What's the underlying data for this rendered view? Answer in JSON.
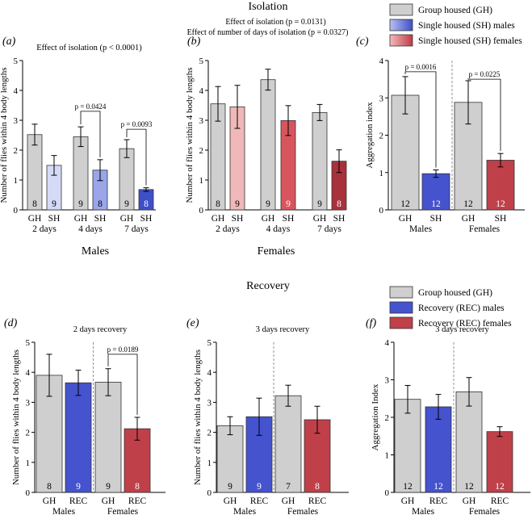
{
  "figure": {
    "isolation_title": "Isolation",
    "recovery_title": "Recovery",
    "males_label": "Males",
    "females_label": "Females"
  },
  "legends": {
    "isolation": [
      {
        "label": "Group housed (GH)",
        "color": "#cfcfcf",
        "color2": "#cfcfcf"
      },
      {
        "label": "Single housed (SH) males",
        "color": "#b7c0ee",
        "color2": "#3f4fc8"
      },
      {
        "label": "Single housed (SH) females",
        "color": "#f2bcbc",
        "color2": "#c23a45"
      }
    ],
    "recovery": [
      {
        "label": "Group housed (GH)",
        "color": "#cfcfcf",
        "color2": "#cfcfcf"
      },
      {
        "label": "Recovery (REC) males",
        "color": "#4553cf",
        "color2": "#4553cf"
      },
      {
        "label": "Recovery (REC) females",
        "color": "#c0404a",
        "color2": "#c0404a"
      }
    ]
  },
  "chart_data": [
    {
      "id": "a",
      "panel": "(a)",
      "type": "bar",
      "title": "Effect of isolation (p < 0.0001)",
      "ylabel": "Number of flies within 4 body lengths",
      "ylim": [
        0,
        5
      ],
      "yticks": [
        0,
        1,
        2,
        3,
        4,
        5
      ],
      "group_labels": [
        "2 days",
        "4 days",
        "7 days"
      ],
      "bars": [
        {
          "label": "GH",
          "value": 2.52,
          "err": 0.35,
          "n": "8",
          "color": "#cfcfcf",
          "group": 0
        },
        {
          "label": "SH",
          "value": 1.49,
          "err": 0.33,
          "n": "9",
          "color": "#d5dbf7",
          "group": 0
        },
        {
          "label": "GH",
          "value": 2.45,
          "err": 0.33,
          "n": "9",
          "color": "#cfcfcf",
          "group": 1
        },
        {
          "label": "SH",
          "value": 1.33,
          "err": 0.35,
          "n": "8",
          "color": "#9aa5ea",
          "group": 1
        },
        {
          "label": "GH",
          "value": 2.05,
          "err": 0.3,
          "n": "9",
          "color": "#cfcfcf",
          "group": 2
        },
        {
          "label": "SH",
          "value": 0.68,
          "err": 0.06,
          "n": "8",
          "color": "#3f4fc8",
          "group": 2
        }
      ],
      "sig": [
        {
          "from": 2,
          "to": 3,
          "label": "p = 0.0424",
          "y": 3.3
        },
        {
          "from": 4,
          "to": 5,
          "label": "p = 0.0093",
          "y": 2.7
        }
      ],
      "separators": []
    },
    {
      "id": "b",
      "panel": "(b)",
      "type": "bar",
      "title": "Effect of isolation (p = 0.0131)",
      "subtitle": "Effect of number of days of isolation (p = 0.0327)",
      "ylabel": "Number of flies within 4 body lengths",
      "ylim": [
        0,
        5
      ],
      "yticks": [
        0,
        1,
        2,
        3,
        4,
        5
      ],
      "group_labels": [
        "2 days",
        "4 days",
        "7 days"
      ],
      "bars": [
        {
          "label": "GH",
          "value": 3.55,
          "err": 0.58,
          "n": "8",
          "color": "#cfcfcf",
          "group": 0
        },
        {
          "label": "SH",
          "value": 3.45,
          "err": 0.72,
          "n": "9",
          "color": "#f0b8b8",
          "group": 0
        },
        {
          "label": "GH",
          "value": 4.36,
          "err": 0.35,
          "n": "9",
          "color": "#cfcfcf",
          "group": 1
        },
        {
          "label": "SH",
          "value": 2.99,
          "err": 0.5,
          "n": "9",
          "color": "#d9555d",
          "group": 1
        },
        {
          "label": "GH",
          "value": 3.26,
          "err": 0.27,
          "n": "9",
          "color": "#cfcfcf",
          "group": 2
        },
        {
          "label": "SH",
          "value": 1.63,
          "err": 0.38,
          "n": "8",
          "color": "#a8323c",
          "group": 2
        }
      ],
      "sig": [],
      "separators": []
    },
    {
      "id": "c",
      "panel": "(c)",
      "type": "bar",
      "title": "",
      "ylabel": "Aggregation index",
      "ylim": [
        0,
        4
      ],
      "yticks": [
        0,
        1,
        2,
        3,
        4
      ],
      "group_labels": [
        "Males",
        "Females"
      ],
      "bars": [
        {
          "label": "GH",
          "value": 3.07,
          "err": 0.5,
          "n": "12",
          "color": "#cfcfcf",
          "group": 0
        },
        {
          "label": "SH",
          "value": 0.97,
          "err": 0.1,
          "n": "12",
          "color": "#4553cf",
          "group": 0
        },
        {
          "label": "GH",
          "value": 2.88,
          "err": 0.58,
          "n": "12",
          "color": "#cfcfcf",
          "group": 1
        },
        {
          "label": "SH",
          "value": 1.33,
          "err": 0.18,
          "n": "12",
          "color": "#c0404a",
          "group": 1
        }
      ],
      "sig": [
        {
          "from": 0,
          "to": 1,
          "label": "p = 0.0016",
          "y": 3.7
        },
        {
          "from": 2,
          "to": 3,
          "label": "p = 0.0225",
          "y": 3.5
        }
      ],
      "separators": [
        1.5
      ]
    },
    {
      "id": "d",
      "panel": "(d)",
      "type": "bar",
      "title": "2 days recovery",
      "ylabel": "Number of flies within 4 body lengths",
      "ylim": [
        0,
        5
      ],
      "yticks": [
        0,
        1,
        2,
        3,
        4,
        5
      ],
      "group_labels": [
        "Males",
        "Females"
      ],
      "bars": [
        {
          "label": "GH",
          "value": 3.9,
          "err": 0.7,
          "n": "8",
          "color": "#cfcfcf",
          "group": 0
        },
        {
          "label": "REC",
          "value": 3.65,
          "err": 0.42,
          "n": "9",
          "color": "#4553cf",
          "group": 0
        },
        {
          "label": "GH",
          "value": 3.67,
          "err": 0.45,
          "n": "9",
          "color": "#cfcfcf",
          "group": 1
        },
        {
          "label": "REC",
          "value": 2.12,
          "err": 0.38,
          "n": "8",
          "color": "#c0404a",
          "group": 1
        }
      ],
      "sig": [
        {
          "from": 2,
          "to": 3,
          "label": "p = 0.0189",
          "y": 4.6
        }
      ],
      "separators": [
        1.5
      ]
    },
    {
      "id": "e",
      "panel": "(e)",
      "type": "bar",
      "title": "3 days recovery",
      "ylabel": "Number of flies within 4 body lengths",
      "ylim": [
        0,
        5
      ],
      "yticks": [
        0,
        1,
        2,
        3,
        4,
        5
      ],
      "group_labels": [
        "Males",
        "Females"
      ],
      "bars": [
        {
          "label": "GH",
          "value": 2.22,
          "err": 0.3,
          "n": "9",
          "color": "#cfcfcf",
          "group": 0
        },
        {
          "label": "REC",
          "value": 2.52,
          "err": 0.62,
          "n": "9",
          "color": "#4553cf",
          "group": 0
        },
        {
          "label": "GH",
          "value": 3.22,
          "err": 0.35,
          "n": "7",
          "color": "#cfcfcf",
          "group": 1
        },
        {
          "label": "REC",
          "value": 2.42,
          "err": 0.45,
          "n": "8",
          "color": "#c0404a",
          "group": 1
        }
      ],
      "sig": [],
      "separators": [
        1.5
      ]
    },
    {
      "id": "f",
      "panel": "(f)",
      "type": "bar",
      "title": "3 days recovery",
      "ylabel": "Aggregation Index",
      "ylim": [
        0,
        4
      ],
      "yticks": [
        0,
        1,
        2,
        3,
        4
      ],
      "group_labels": [
        "Males",
        "Females"
      ],
      "bars": [
        {
          "label": "GH",
          "value": 2.48,
          "err": 0.37,
          "n": "12",
          "color": "#cfcfcf",
          "group": 0
        },
        {
          "label": "REC",
          "value": 2.28,
          "err": 0.33,
          "n": "12",
          "color": "#4553cf",
          "group": 0
        },
        {
          "label": "GH",
          "value": 2.68,
          "err": 0.38,
          "n": "12",
          "color": "#cfcfcf",
          "group": 1
        },
        {
          "label": "REC",
          "value": 1.62,
          "err": 0.13,
          "n": "12",
          "color": "#c0404a",
          "group": 1
        }
      ],
      "sig": [],
      "separators": [
        1.5
      ]
    }
  ]
}
